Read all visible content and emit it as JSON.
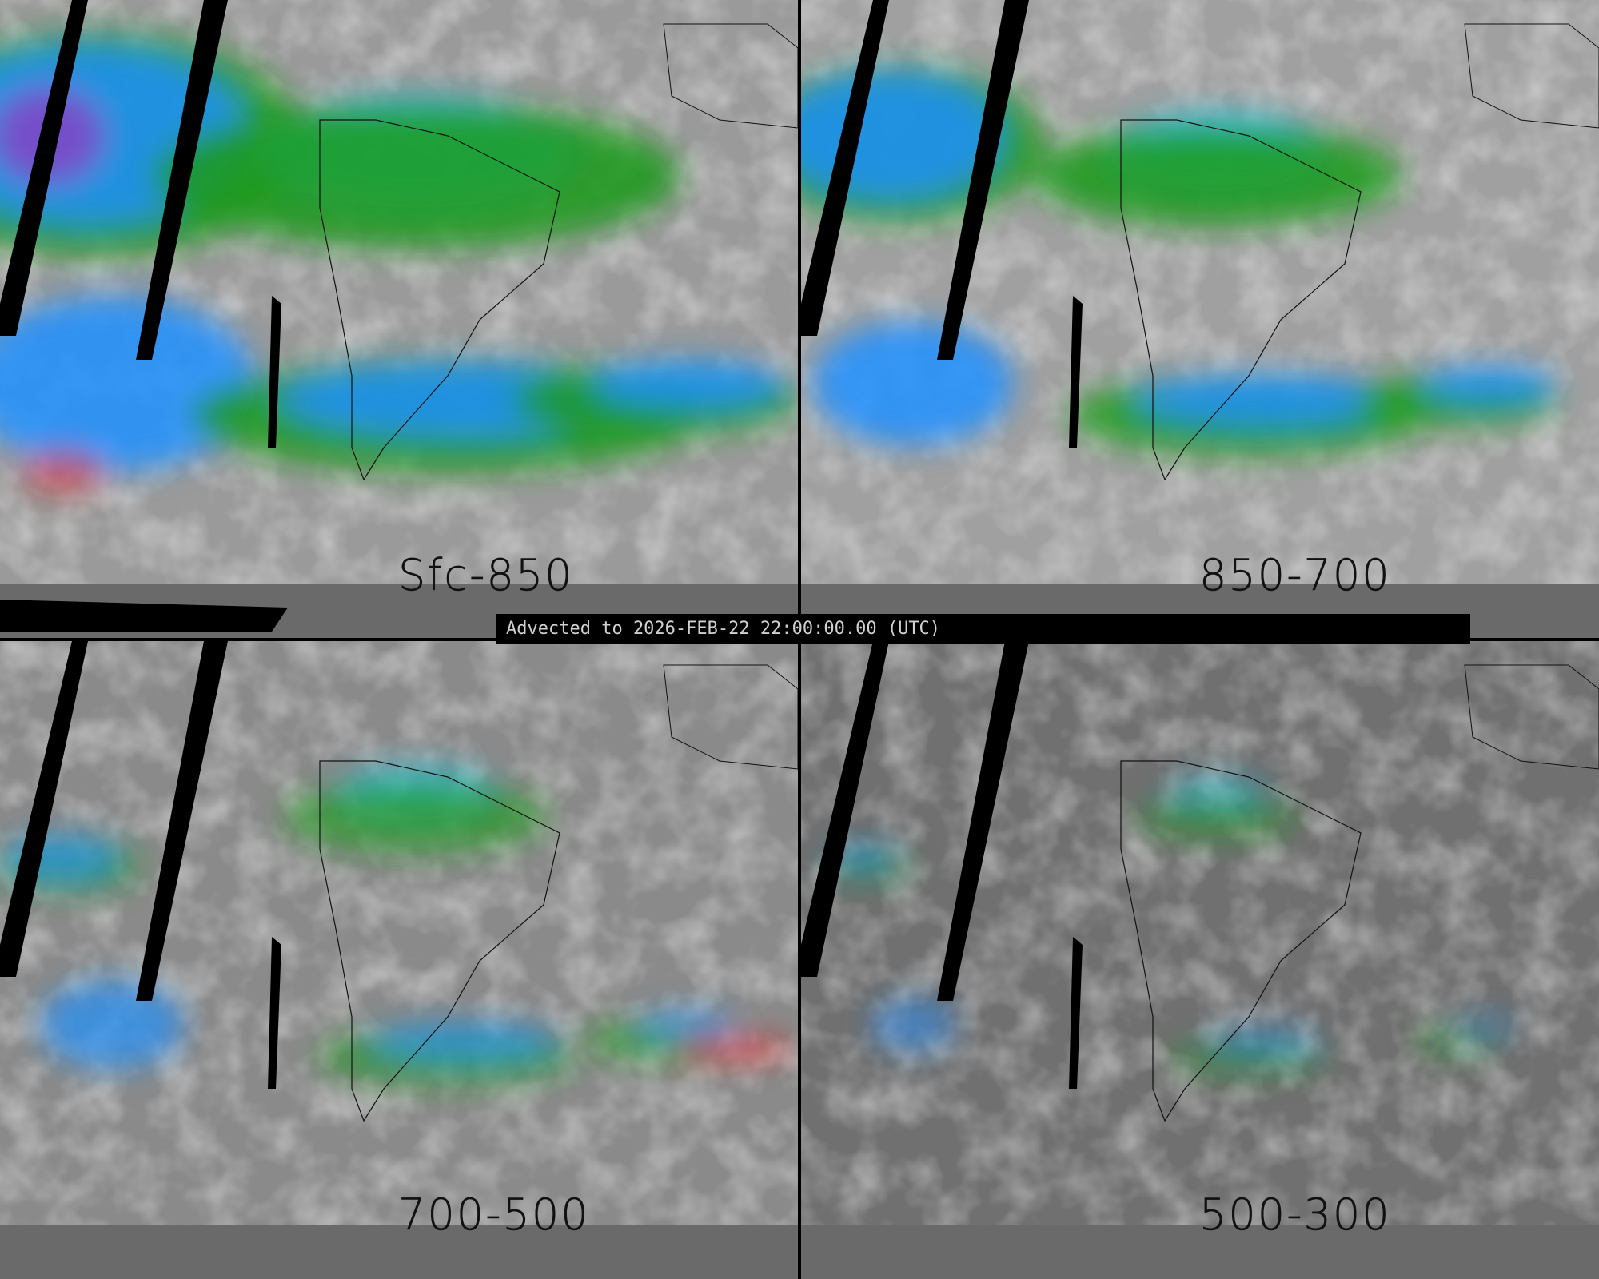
{
  "banner": {
    "text": "Advected to 2026-FEB-22 22:00:00.00 (UTC)"
  },
  "panels": [
    {
      "label": "Sfc-850"
    },
    {
      "label": "850-700"
    },
    {
      "label": "700-500"
    },
    {
      "label": "500-300"
    }
  ],
  "colors": {
    "low": "#808080",
    "green": "#1a9a1a",
    "blue": "#1e90ff",
    "cyan": "#20c8f0",
    "purple": "#9a30c0",
    "red": "#e02020",
    "missing": "#000000"
  }
}
